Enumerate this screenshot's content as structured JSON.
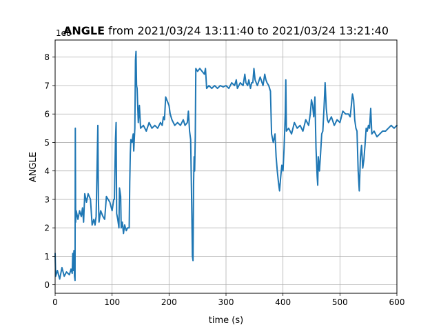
{
  "chart_data": {
    "type": "line",
    "title_bold": "ANGLE",
    "title_rest": " from 2021/03/24 13:11:40 to 2021/03/24 13:21:40",
    "xlabel": "time (s)",
    "ylabel": "ANGLE",
    "offset_text": "1e8",
    "xlim": [
      0,
      600
    ],
    "ylim": [
      -0.3,
      8.6
    ],
    "xticks": [
      0,
      100,
      200,
      300,
      400,
      500,
      600
    ],
    "yticks": [
      0,
      1,
      2,
      3,
      4,
      5,
      6,
      7,
      8
    ],
    "grid": true,
    "legend": "none",
    "colors": {
      "line": "#1f77b4",
      "grid": "#b0b0b0"
    },
    "series": [
      {
        "values": [
          [
            0,
            1.1
          ],
          [
            1,
            0.3
          ],
          [
            4,
            0.5
          ],
          [
            8,
            0.2
          ],
          [
            12,
            0.6
          ],
          [
            16,
            0.3
          ],
          [
            20,
            0.45
          ],
          [
            25,
            0.35
          ],
          [
            28,
            0.55
          ],
          [
            30,
            0.4
          ],
          [
            31,
            1.1
          ],
          [
            32,
            0.5
          ],
          [
            33,
            1.2
          ],
          [
            34,
            0.3
          ],
          [
            35,
            0.15
          ],
          [
            35.5,
            5.5
          ],
          [
            36,
            2.2
          ],
          [
            37,
            2.6
          ],
          [
            40,
            2.3
          ],
          [
            43,
            2.6
          ],
          [
            46,
            2.4
          ],
          [
            48,
            2.7
          ],
          [
            50,
            2.2
          ],
          [
            52,
            3.2
          ],
          [
            55,
            2.9
          ],
          [
            58,
            3.2
          ],
          [
            62,
            3.0
          ],
          [
            65,
            2.1
          ],
          [
            68,
            2.3
          ],
          [
            70,
            2.1
          ],
          [
            72,
            2.4
          ],
          [
            75,
            5.6
          ],
          [
            76,
            3.0
          ],
          [
            77,
            2.2
          ],
          [
            80,
            2.6
          ],
          [
            84,
            2.4
          ],
          [
            87,
            2.3
          ],
          [
            90,
            3.1
          ],
          [
            93,
            3.0
          ],
          [
            96,
            2.9
          ],
          [
            100,
            2.6
          ],
          [
            103,
            3.0
          ],
          [
            104,
            3.0
          ],
          [
            106,
            5.1
          ],
          [
            107,
            5.7
          ],
          [
            108,
            2.5
          ],
          [
            110,
            2.3
          ],
          [
            112,
            2.0
          ],
          [
            113,
            3.4
          ],
          [
            115,
            3.1
          ],
          [
            116,
            2.0
          ],
          [
            118,
            2.2
          ],
          [
            120,
            1.8
          ],
          [
            122,
            2.1
          ],
          [
            125,
            1.9
          ],
          [
            127,
            2.0
          ],
          [
            130,
            2.0
          ],
          [
            131,
            3.6
          ],
          [
            132,
            4.6
          ],
          [
            133,
            5.1
          ],
          [
            135,
            5.0
          ],
          [
            137,
            5.3
          ],
          [
            138,
            4.7
          ],
          [
            140,
            5.5
          ],
          [
            141,
            7.9
          ],
          [
            142,
            8.2
          ],
          [
            143,
            7.0
          ],
          [
            144,
            6.9
          ],
          [
            146,
            5.7
          ],
          [
            148,
            6.3
          ],
          [
            150,
            5.5
          ],
          [
            155,
            5.6
          ],
          [
            160,
            5.4
          ],
          [
            165,
            5.7
          ],
          [
            170,
            5.5
          ],
          [
            175,
            5.6
          ],
          [
            180,
            5.5
          ],
          [
            185,
            5.7
          ],
          [
            188,
            5.6
          ],
          [
            190,
            5.9
          ],
          [
            192,
            5.8
          ],
          [
            194,
            6.6
          ],
          [
            196,
            6.5
          ],
          [
            200,
            6.3
          ],
          [
            202,
            6.0
          ],
          [
            205,
            5.8
          ],
          [
            210,
            5.6
          ],
          [
            215,
            5.7
          ],
          [
            220,
            5.6
          ],
          [
            225,
            5.8
          ],
          [
            228,
            5.6
          ],
          [
            232,
            5.7
          ],
          [
            234,
            6.1
          ],
          [
            236,
            5.4
          ],
          [
            238,
            5.1
          ],
          [
            240,
            2.5
          ],
          [
            241,
            1.0
          ],
          [
            242,
            0.85
          ],
          [
            243,
            3.5
          ],
          [
            244,
            4.5
          ],
          [
            245,
            4.0
          ],
          [
            246,
            5.2
          ],
          [
            247,
            7.6
          ],
          [
            250,
            7.5
          ],
          [
            254,
            7.6
          ],
          [
            258,
            7.5
          ],
          [
            262,
            7.4
          ],
          [
            264,
            7.6
          ],
          [
            266,
            6.9
          ],
          [
            270,
            7.0
          ],
          [
            275,
            6.9
          ],
          [
            280,
            7.0
          ],
          [
            285,
            6.9
          ],
          [
            290,
            7.0
          ],
          [
            295,
            6.95
          ],
          [
            300,
            7.0
          ],
          [
            305,
            6.9
          ],
          [
            310,
            7.1
          ],
          [
            315,
            7.0
          ],
          [
            318,
            7.2
          ],
          [
            320,
            6.9
          ],
          [
            325,
            7.1
          ],
          [
            330,
            7.0
          ],
          [
            333,
            7.4
          ],
          [
            335,
            7.1
          ],
          [
            338,
            7.0
          ],
          [
            340,
            7.2
          ],
          [
            343,
            6.9
          ],
          [
            345,
            7.1
          ],
          [
            347,
            7.1
          ],
          [
            349,
            7.6
          ],
          [
            351,
            7.2
          ],
          [
            355,
            7.0
          ],
          [
            360,
            7.3
          ],
          [
            365,
            7.0
          ],
          [
            368,
            7.4
          ],
          [
            370,
            7.2
          ],
          [
            372,
            7.1
          ],
          [
            375,
            7.0
          ],
          [
            378,
            6.8
          ],
          [
            380,
            5.3
          ],
          [
            383,
            5.0
          ],
          [
            386,
            5.3
          ],
          [
            388,
            4.5
          ],
          [
            390,
            4.0
          ],
          [
            392,
            3.6
          ],
          [
            394,
            3.3
          ],
          [
            396,
            3.8
          ],
          [
            398,
            4.2
          ],
          [
            400,
            4.0
          ],
          [
            402,
            4.8
          ],
          [
            404,
            6.0
          ],
          [
            405,
            7.2
          ],
          [
            406,
            5.4
          ],
          [
            410,
            5.5
          ],
          [
            415,
            5.3
          ],
          [
            420,
            5.7
          ],
          [
            425,
            5.5
          ],
          [
            430,
            5.6
          ],
          [
            435,
            5.4
          ],
          [
            440,
            5.8
          ],
          [
            445,
            5.6
          ],
          [
            448,
            6.0
          ],
          [
            450,
            6.5
          ],
          [
            452,
            6.3
          ],
          [
            454,
            5.9
          ],
          [
            456,
            6.6
          ],
          [
            458,
            4.8
          ],
          [
            460,
            3.8
          ],
          [
            461,
            3.5
          ],
          [
            462,
            4.5
          ],
          [
            464,
            4.0
          ],
          [
            466,
            4.6
          ],
          [
            468,
            5.3
          ],
          [
            470,
            5.4
          ],
          [
            472,
            6.2
          ],
          [
            474,
            7.1
          ],
          [
            476,
            6.2
          ],
          [
            478,
            5.8
          ],
          [
            480,
            5.7
          ],
          [
            485,
            5.9
          ],
          [
            490,
            5.6
          ],
          [
            495,
            5.8
          ],
          [
            500,
            5.7
          ],
          [
            505,
            6.1
          ],
          [
            510,
            6.0
          ],
          [
            515,
            6.0
          ],
          [
            518,
            5.9
          ],
          [
            520,
            6.3
          ],
          [
            522,
            6.7
          ],
          [
            524,
            6.5
          ],
          [
            526,
            5.8
          ],
          [
            528,
            5.5
          ],
          [
            530,
            5.4
          ],
          [
            532,
            4.0
          ],
          [
            534,
            3.3
          ],
          [
            536,
            4.5
          ],
          [
            538,
            4.9
          ],
          [
            540,
            4.1
          ],
          [
            542,
            4.4
          ],
          [
            544,
            4.9
          ],
          [
            546,
            5.5
          ],
          [
            548,
            5.4
          ],
          [
            550,
            5.6
          ],
          [
            552,
            5.5
          ],
          [
            554,
            6.2
          ],
          [
            556,
            5.3
          ],
          [
            560,
            5.4
          ],
          [
            565,
            5.2
          ],
          [
            570,
            5.3
          ],
          [
            575,
            5.4
          ],
          [
            580,
            5.4
          ],
          [
            585,
            5.5
          ],
          [
            590,
            5.6
          ],
          [
            595,
            5.5
          ],
          [
            600,
            5.6
          ]
        ]
      }
    ]
  }
}
